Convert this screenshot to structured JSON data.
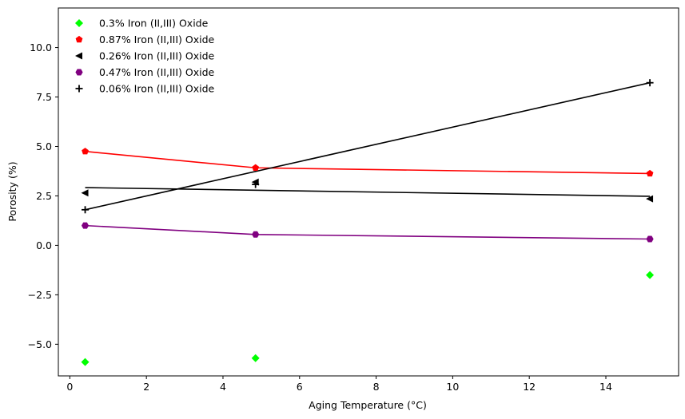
{
  "chart_data": {
    "type": "scatter",
    "xlabel": "Aging Temperature (°C)",
    "ylabel": "Porosity (%)",
    "xlim": [
      -0.3,
      15.9
    ],
    "ylim": [
      -6.6,
      12.0
    ],
    "x_ticks": [
      0,
      2,
      4,
      6,
      8,
      10,
      12,
      14
    ],
    "y_ticks": [
      -5.0,
      -2.5,
      0.0,
      2.5,
      5.0,
      7.5,
      10.0
    ],
    "x_tick_labels": [
      "0",
      "2",
      "4",
      "6",
      "8",
      "10",
      "12",
      "14"
    ],
    "y_tick_labels": [
      "−5.0",
      "−2.5",
      "0.0",
      "2.5",
      "5.0",
      "7.5",
      "10.0"
    ],
    "grid": false,
    "legend_position": "top-left",
    "series": [
      {
        "name": "0.3% Iron (II,III) Oxide",
        "color": "#00ff00",
        "marker": "diamond",
        "x": [
          0.4,
          4.85,
          15.15
        ],
        "y": [
          -5.9,
          -5.7,
          -1.5
        ],
        "fit_line": null
      },
      {
        "name": "0.87% Iron (II,III) Oxide",
        "color": "#ff0000",
        "marker": "pentagon",
        "x": [
          0.4,
          4.85,
          15.15
        ],
        "y": [
          4.75,
          3.92,
          3.63
        ],
        "fit_line": {
          "x": [
            0.4,
            4.85,
            15.15
          ],
          "y": [
            4.75,
            3.92,
            3.63
          ]
        }
      },
      {
        "name": "0.26% Iron (II,III) Oxide",
        "color": "#000000",
        "marker": "triangle-left",
        "x": [
          0.4,
          4.85,
          15.15
        ],
        "y": [
          2.65,
          3.2,
          2.35
        ],
        "fit_line": {
          "x": [
            0.4,
            15.15
          ],
          "y": [
            2.92,
            2.48
          ]
        }
      },
      {
        "name": "0.47% Iron (II,III) Oxide",
        "color": "#800080",
        "marker": "hexagon",
        "x": [
          0.4,
          4.85,
          15.15
        ],
        "y": [
          1.0,
          0.55,
          0.32
        ],
        "fit_line": {
          "x": [
            0.4,
            4.85,
            15.15
          ],
          "y": [
            1.0,
            0.55,
            0.32
          ]
        }
      },
      {
        "name": "0.06% Iron (II,III) Oxide",
        "color": "#000000",
        "marker": "plus",
        "x": [
          0.4,
          4.85,
          15.15
        ],
        "y": [
          1.8,
          3.08,
          8.22
        ],
        "fit_line": {
          "x": [
            0.4,
            15.15
          ],
          "y": [
            1.8,
            8.22
          ]
        }
      }
    ]
  }
}
